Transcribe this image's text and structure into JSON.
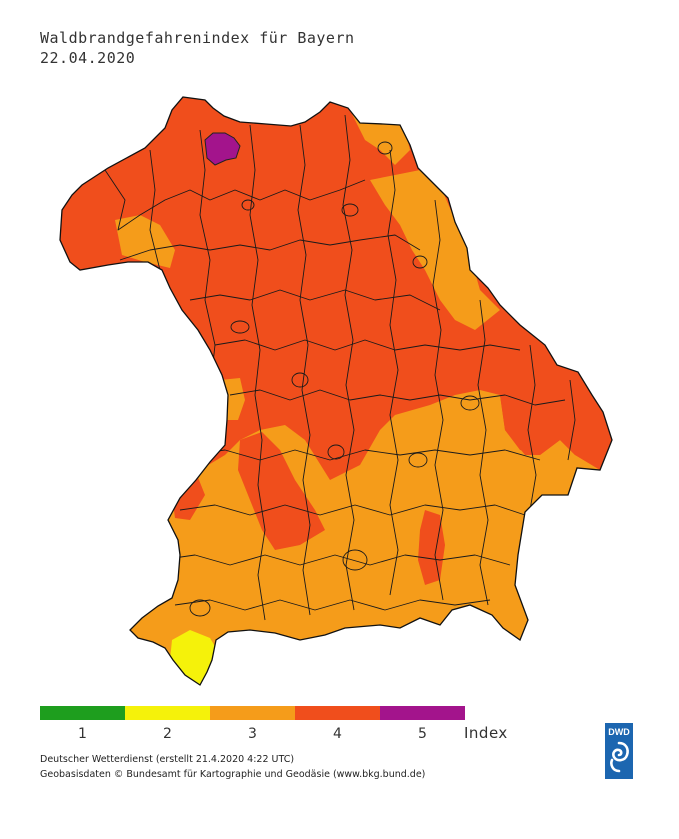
{
  "header": {
    "title": "Waldbrandgefahrenindex für Bayern",
    "date": "22.04.2020"
  },
  "map": {
    "region": "Bayern",
    "dominant_levels": [
      4,
      3
    ],
    "hotspot_level": 5,
    "low_level_area": 2
  },
  "legend": {
    "items": [
      {
        "label": "1",
        "color": "#1e9e1e"
      },
      {
        "label": "2",
        "color": "#f5f20a"
      },
      {
        "label": "3",
        "color": "#f59c1a"
      },
      {
        "label": "4",
        "color": "#f04e1c"
      },
      {
        "label": "5",
        "color": "#a3148c"
      }
    ],
    "unit_label": "Index"
  },
  "footer": {
    "line1": "Deutscher Wetterdienst (erstellt 21.4.2020 4:22 UTC)",
    "line2": "Geobasisdaten © Bundesamt für Kartographie und Geodäsie (www.bkg.bund.de)"
  },
  "logo": {
    "text": "DWD",
    "color": "#1c66b0"
  }
}
